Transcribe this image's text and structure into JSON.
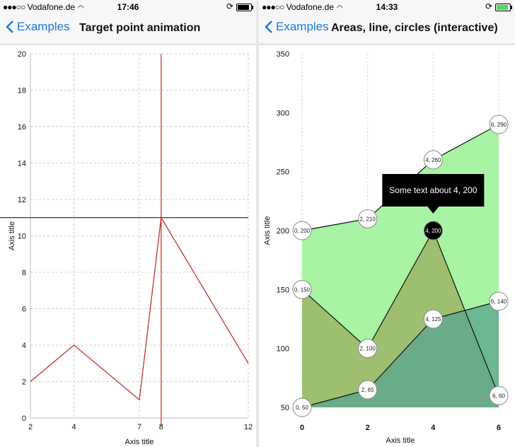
{
  "left_phone": {
    "status": {
      "carrier": "Vodafone.de",
      "time": "17:46"
    },
    "nav": {
      "back_label": "Examples",
      "title": "Target point animation"
    }
  },
  "right_phone": {
    "status": {
      "carrier": "Vodafone.de",
      "time": "14:33"
    },
    "nav": {
      "back_label": "Examples",
      "title": "Areas, line, circles (interactive)"
    }
  },
  "icons": [
    "signal-dots-icon",
    "wifi-icon",
    "rotation-lock-icon",
    "battery-icon",
    "back-chevron-icon"
  ],
  "colors": {
    "ios_blue": "#1a7ae0",
    "line_red": "#c9302c",
    "area_green": "#a8f4a4",
    "area_olive": "#9bb566",
    "area_teal": "#5fa88f"
  },
  "chart_data": [
    {
      "type": "line",
      "title": "",
      "xlabel": "Axis title",
      "ylabel": "Axis title",
      "xlim": [
        2,
        12
      ],
      "ylim": [
        0,
        20
      ],
      "xticks": [
        2,
        4,
        7,
        8,
        12
      ],
      "yticks": [
        0,
        2,
        4,
        6,
        8,
        10,
        12,
        14,
        16,
        18,
        20
      ],
      "grid": true,
      "series": [
        {
          "x": [
            2,
            4,
            7,
            8,
            12
          ],
          "y": [
            2,
            4,
            1,
            11,
            3
          ],
          "color": "#c9302c"
        }
      ],
      "target_point": {
        "x": 8,
        "y": 11
      }
    },
    {
      "type": "area",
      "title": "",
      "xlabel": "Axis title",
      "ylabel": "Axis title",
      "xlim": [
        0,
        6
      ],
      "ylim": [
        50,
        350
      ],
      "xticks": [
        0,
        2,
        4,
        6
      ],
      "yticks": [
        50,
        100,
        150,
        200,
        250,
        300,
        350
      ],
      "grid": true,
      "series": [
        {
          "x": [
            0,
            2,
            4,
            6
          ],
          "y": [
            200,
            210,
            260,
            290
          ],
          "color": "#a8f4a4"
        },
        {
          "x": [
            0,
            2,
            4,
            6
          ],
          "y": [
            150,
            100,
            200,
            60
          ],
          "color": "#9bb566"
        },
        {
          "x": [
            0,
            2,
            4,
            6
          ],
          "y": [
            50,
            65,
            125,
            140
          ],
          "color": "#5fa88f"
        }
      ],
      "point_labels": [
        "0, 200",
        "2, 210",
        "4, 260",
        "6, 290",
        "0, 150",
        "2, 100",
        "4, 200",
        "6, 60",
        "0, 50",
        "2, 65",
        "4, 125",
        "6, 140"
      ],
      "selected_point": {
        "x": 4,
        "y": 200
      },
      "tooltip": "Some text about 4, 200"
    }
  ]
}
